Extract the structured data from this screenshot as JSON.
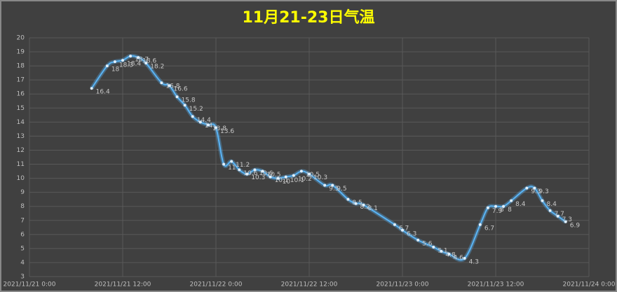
{
  "chart_data": {
    "type": "line",
    "title": "11月21-23日气温",
    "x": [
      "2021/11/21 8:00",
      "2021/11/21 10:00",
      "2021/11/21 11:00",
      "2021/11/21 12:00",
      "2021/11/21 13:00",
      "2021/11/21 14:00",
      "2021/11/21 15:00",
      "2021/11/21 17:00",
      "2021/11/21 18:00",
      "2021/11/21 19:00",
      "2021/11/21 20:00",
      "2021/11/21 21:00",
      "2021/11/21 22:00",
      "2021/11/21 23:00",
      "2021/11/22 0:00",
      "2021/11/22 1:00",
      "2021/11/22 2:00",
      "2021/11/22 3:00",
      "2021/11/22 4:00",
      "2021/11/22 5:00",
      "2021/11/22 6:00",
      "2021/11/22 7:00",
      "2021/11/22 8:00",
      "2021/11/22 9:00",
      "2021/11/22 10:00",
      "2021/11/22 11:00",
      "2021/11/22 12:00",
      "2021/11/22 14:00",
      "2021/11/22 15:00",
      "2021/11/22 17:00",
      "2021/11/22 18:00",
      "2021/11/22 19:00",
      "2021/11/22 23:00",
      "2021/11/23 0:00",
      "2021/11/23 2:00",
      "2021/11/23 4:00",
      "2021/11/23 5:00",
      "2021/11/23 6:00",
      "2021/11/23 8:00",
      "2021/11/23 10:00",
      "2021/11/23 11:00",
      "2021/11/23 12:00",
      "2021/11/23 13:00",
      "2021/11/23 14:00",
      "2021/11/23 16:00",
      "2021/11/23 17:00",
      "2021/11/23 18:00",
      "2021/11/23 19:00",
      "2021/11/23 20:00",
      "2021/11/23 21:00"
    ],
    "values": [
      16.4,
      18,
      18.3,
      18.4,
      18.7,
      18.6,
      18.2,
      16.8,
      16.6,
      15.8,
      15.2,
      14.4,
      14,
      13.8,
      13.6,
      11,
      11.2,
      10.6,
      10.3,
      10.6,
      10.5,
      10.1,
      10,
      10.1,
      10.2,
      10.5,
      10.3,
      9.5,
      9.5,
      8.5,
      8.2,
      8.1,
      6.7,
      6.3,
      5.6,
      5.1,
      4.8,
      4.6,
      4.3,
      6.7,
      7.9,
      8,
      8,
      8.4,
      9.3,
      9.3,
      8.4,
      7.7,
      7.3,
      6.9
    ],
    "color": "#5ab4f5",
    "xlim": [
      "2021/11/21 0:00",
      "2021/11/24 0:00"
    ],
    "xticks": [
      "2021/11/21 0:00",
      "2021/11/21 12:00",
      "2021/11/22 0:00",
      "2021/11/22 12:00",
      "2021/11/23 0:00",
      "2021/11/23 12:00",
      "2021/11/24 0:00"
    ],
    "ylim": [
      3,
      20
    ],
    "yticks": [
      3,
      4,
      5,
      6,
      7,
      8,
      9,
      10,
      11,
      12,
      13,
      14,
      15,
      16,
      17,
      18,
      19,
      20
    ],
    "grid": true
  }
}
